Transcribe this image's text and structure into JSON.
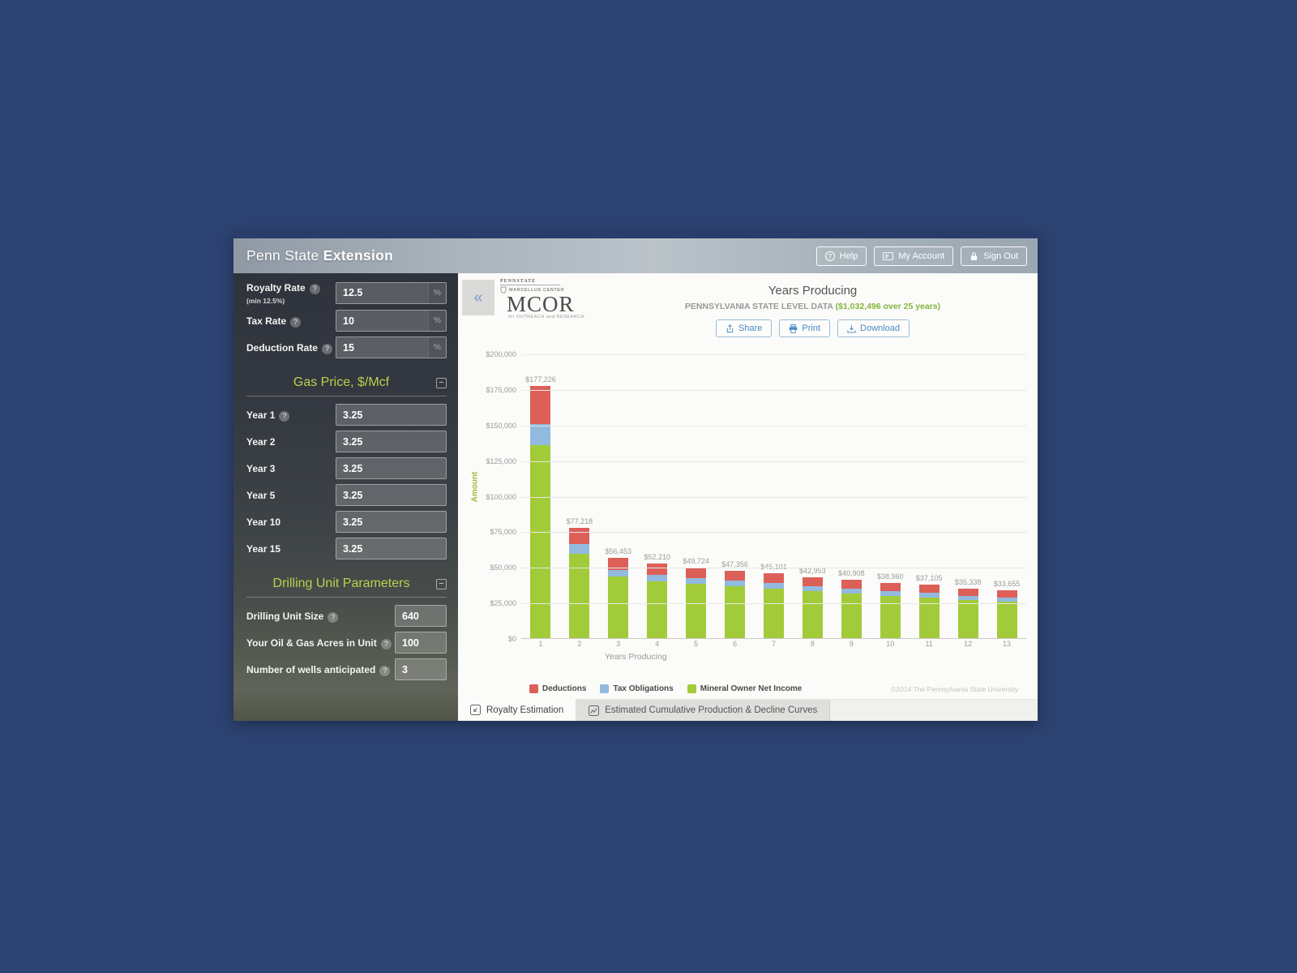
{
  "window": {
    "brand_regular": "Penn State",
    "brand_bold": "Extension",
    "header_buttons": [
      {
        "label": "Help",
        "icon": "help-circle-icon"
      },
      {
        "label": "My Account",
        "icon": "account-card-icon"
      },
      {
        "label": "Sign Out",
        "icon": "lock-icon"
      }
    ]
  },
  "sidebar": {
    "top_fields": [
      {
        "label": "Royalty Rate",
        "sublabel": "(min 12.5%)",
        "value": "12.5",
        "suffix": "%",
        "help": true
      },
      {
        "label": "Tax Rate",
        "value": "10",
        "suffix": "%",
        "help": true
      },
      {
        "label": "Deduction Rate",
        "value": "15",
        "suffix": "%",
        "help": true
      }
    ],
    "sections": [
      {
        "title": "Gas Price, $/Mcf",
        "collapse": "−",
        "narrow": false,
        "fields": [
          {
            "label": "Year 1",
            "value": "3.25",
            "help": true
          },
          {
            "label": "Year 2",
            "value": "3.25"
          },
          {
            "label": "Year 3",
            "value": "3.25"
          },
          {
            "label": "Year 5",
            "value": "3.25"
          },
          {
            "label": "Year 10",
            "value": "3.25"
          },
          {
            "label": "Year 15",
            "value": "3.25"
          }
        ]
      },
      {
        "title": "Drilling Unit Parameters",
        "collapse": "−",
        "narrow": true,
        "fields": [
          {
            "label": "Drilling Unit Size",
            "value": "640",
            "help": true
          },
          {
            "label": "Your Oil & Gas Acres in Unit",
            "value": "100",
            "help": true
          },
          {
            "label": "Number of wells anticipated",
            "value": "3",
            "help": true
          }
        ]
      }
    ]
  },
  "main": {
    "collapse_button": "«",
    "logo": {
      "pennstate": "PENNSTATE",
      "center_line": "MARCELLUS CENTER",
      "acronym": "MCOR",
      "tagline": "for OUTREACH and RESEARCH"
    },
    "title": "Years Producing",
    "subtitle_prefix": "PENNSYLVANIA STATE LEVEL DATA ",
    "subtitle_highlight": "($1,032,496 over 25 years)",
    "actions": [
      {
        "label": "Share",
        "icon": "share-icon"
      },
      {
        "label": "Print",
        "icon": "print-icon"
      },
      {
        "label": "Download",
        "icon": "download-icon"
      }
    ],
    "copyright": "©2014 The Pennsylvania State University",
    "tabs": [
      {
        "label": "Royalty Estimation",
        "active": true,
        "icon": "royalty-tab-icon"
      },
      {
        "label": "Estimated Cumulative Production & Decline Curves",
        "active": false,
        "icon": "curves-tab-icon"
      }
    ]
  },
  "chart_data": {
    "type": "bar",
    "stacked": true,
    "title": "Years Producing",
    "xlabel": "Years Producing",
    "ylabel": "Amount",
    "categories": [
      1,
      2,
      3,
      4,
      5,
      6,
      7,
      8,
      9,
      10,
      11,
      12,
      13
    ],
    "totals": [
      177226,
      77218,
      56453,
      52210,
      49724,
      47356,
      45101,
      42953,
      40908,
      38960,
      37105,
      35338,
      33655
    ],
    "total_labels": [
      "$177,226",
      "$77,218",
      "$56,453",
      "$52,210",
      "$49,724",
      "$47,356",
      "$45,101",
      "$42,953",
      "$40,908",
      "$38,960",
      "$37,105",
      "$35,338",
      "$33,655"
    ],
    "series": [
      {
        "name": "Deductions",
        "color": "#dc5f58",
        "values": [
          26584,
          11583,
          8468,
          7832,
          7459,
          7103,
          6765,
          6443,
          6136,
          5844,
          5566,
          5301,
          5048
        ]
      },
      {
        "name": "Tax Obligations",
        "color": "#92badf",
        "values": [
          15064,
          6564,
          4799,
          4438,
          4227,
          4025,
          3834,
          3651,
          3477,
          3312,
          3154,
          3004,
          2861
        ]
      },
      {
        "name": "Mineral Owner Net Income",
        "color": "#a2cb39",
        "values": [
          135578,
          59071,
          43186,
          39940,
          38038,
          36228,
          34502,
          32859,
          31295,
          29804,
          28385,
          27033,
          25746
        ]
      }
    ],
    "ylim": [
      0,
      200000
    ],
    "ytick_step": 25000,
    "ytick_labels": [
      "$0",
      "$25,000",
      "$50,000",
      "$75,000",
      "$100,000",
      "$125,000",
      "$150,000",
      "$175,000",
      "$200,000"
    ],
    "grid": true,
    "legend_position": "bottom"
  }
}
